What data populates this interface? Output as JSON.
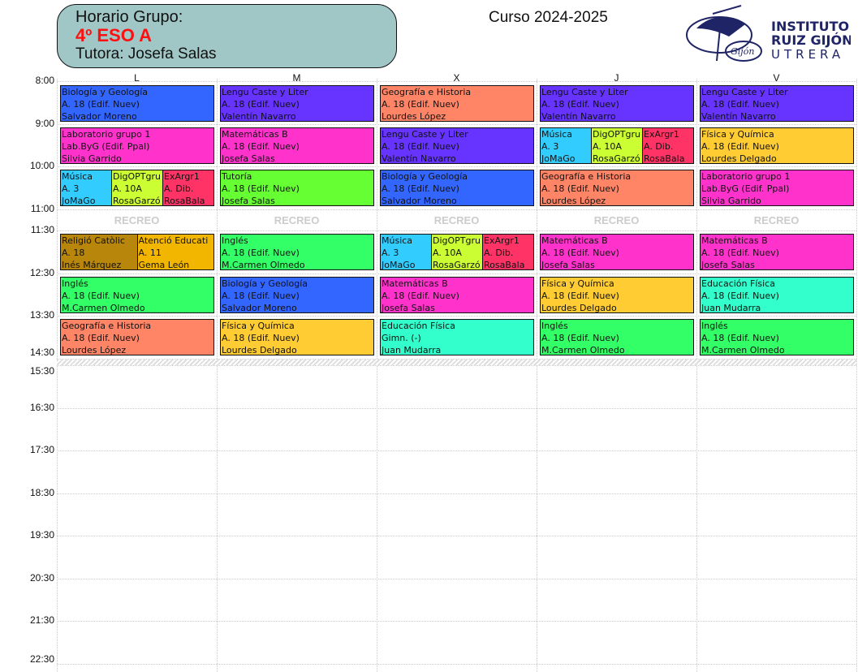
{
  "header": {
    "title": "Horario Grupo:",
    "group": "4º ESO A",
    "tutor": "Tutora: Josefa Salas",
    "course": "Curso 2024-2025"
  },
  "logo": {
    "line1": "INSTITUTO",
    "line2": "RUIZ GIJÓN",
    "line3": "UTRERA",
    "emblem_text": "R.Gijón"
  },
  "days": [
    "L",
    "M",
    "X",
    "J",
    "V"
  ],
  "times": [
    "8:00",
    "9:00",
    "10:00",
    "11:00",
    "11:30",
    "12:30",
    "13:30",
    "14:30",
    "15:30",
    "16:30",
    "17:30",
    "18:30",
    "19:30",
    "20:30",
    "21:30",
    "22:30"
  ],
  "break_label": "RECREO",
  "colors": {
    "blue": "#3366ff",
    "purple": "#6633ff",
    "salmon": "#ff8566",
    "pink": "#ff33cc",
    "lime": "#66ff33",
    "green": "#33ff66",
    "yellow": "#ffcc33",
    "cyan": "#33ccff",
    "yellowgreen": "#ccff33",
    "red": "#ff3366",
    "teal": "#33ffcc",
    "brown": "#b8860b",
    "orange": "#f2b600"
  },
  "schedule": [
    [
      [
        {
          "s": "Biología y Geología",
          "r": "A. 18 (Edif. Nuev)",
          "t": "Salvador Moreno",
          "c": "blue"
        }
      ],
      [
        {
          "s": "Laboratorio grupo 1",
          "r": "Lab.ByG (Edif. Ppal)",
          "t": "Silvia Garrido",
          "c": "pink"
        }
      ],
      [
        {
          "s": "Música",
          "r": "A. 3",
          "t": "JoMaGo",
          "c": "cyan"
        },
        {
          "s": "DigOPTgru",
          "r": "A. 10A",
          "t": "RosaGarzó",
          "c": "yellowgreen"
        },
        {
          "s": "ExArgr1",
          "r": "A. Dib.",
          "t": "RosaBala",
          "c": "red"
        }
      ],
      [
        {
          "s": "Religió Catòlic",
          "r": "A. 18",
          "t": "Inés Márquez",
          "c": "brown"
        },
        {
          "s": "Atenció Educati",
          "r": "A. 11",
          "t": "Gema León",
          "c": "orange"
        }
      ],
      [
        {
          "s": "Inglés",
          "r": "A. 18 (Edif. Nuev)",
          "t": "M.Carmen Olmedo",
          "c": "green"
        }
      ],
      [
        {
          "s": "Geografía e Historia",
          "r": "A. 18 (Edif. Nuev)",
          "t": "Lourdes López",
          "c": "salmon"
        }
      ]
    ],
    [
      [
        {
          "s": "Lengu Caste y Liter",
          "r": "A. 18 (Edif. Nuev)",
          "t": "Valentín Navarro",
          "c": "purple"
        }
      ],
      [
        {
          "s": "Matemáticas B",
          "r": "A. 18 (Edif. Nuev)",
          "t": "Josefa Salas",
          "c": "pink"
        }
      ],
      [
        {
          "s": "Tutoría",
          "r": "A. 18 (Edif. Nuev)",
          "t": "Josefa Salas",
          "c": "lime"
        }
      ],
      [
        {
          "s": "Inglés",
          "r": "A. 18 (Edif. Nuev)",
          "t": "M.Carmen Olmedo",
          "c": "green"
        }
      ],
      [
        {
          "s": "Biología y Geología",
          "r": "A. 18 (Edif. Nuev)",
          "t": "Salvador Moreno",
          "c": "blue"
        }
      ],
      [
        {
          "s": "Física y Química",
          "r": "A. 18 (Edif. Nuev)",
          "t": "Lourdes Delgado",
          "c": "yellow"
        }
      ]
    ],
    [
      [
        {
          "s": "Geografía e Historia",
          "r": "A. 18 (Edif. Nuev)",
          "t": "Lourdes López",
          "c": "salmon"
        }
      ],
      [
        {
          "s": "Lengu Caste y Liter",
          "r": "A. 18 (Edif. Nuev)",
          "t": "Valentín Navarro",
          "c": "purple"
        }
      ],
      [
        {
          "s": "Biología y Geología",
          "r": "A. 18 (Edif. Nuev)",
          "t": "Salvador Moreno",
          "c": "blue"
        }
      ],
      [
        {
          "s": "Música",
          "r": "A. 3",
          "t": "JoMaGo",
          "c": "cyan"
        },
        {
          "s": "DigOPTgru",
          "r": "A. 10A",
          "t": "RosaGarzó",
          "c": "yellowgreen"
        },
        {
          "s": "ExArgr1",
          "r": "A. Dib.",
          "t": "RosaBala",
          "c": "red"
        }
      ],
      [
        {
          "s": "Matemáticas B",
          "r": "A. 18 (Edif. Nuev)",
          "t": "Josefa Salas",
          "c": "pink"
        }
      ],
      [
        {
          "s": "Educación Física",
          "r": "Gimn. (-)",
          "t": "Juan Mudarra",
          "c": "teal"
        }
      ]
    ],
    [
      [
        {
          "s": "Lengu Caste y Liter",
          "r": "A. 18 (Edif. Nuev)",
          "t": "Valentín Navarro",
          "c": "purple"
        }
      ],
      [
        {
          "s": "Música",
          "r": "A. 3",
          "t": "JoMaGo",
          "c": "cyan"
        },
        {
          "s": "DigOPTgru",
          "r": "A. 10A",
          "t": "RosaGarzó",
          "c": "yellowgreen"
        },
        {
          "s": "ExArgr1",
          "r": "A. Dib.",
          "t": "RosaBala",
          "c": "red"
        }
      ],
      [
        {
          "s": "Geografía e Historia",
          "r": "A. 18 (Edif. Nuev)",
          "t": "Lourdes López",
          "c": "salmon"
        }
      ],
      [
        {
          "s": "Matemáticas B",
          "r": "A. 18 (Edif. Nuev)",
          "t": "Josefa Salas",
          "c": "pink"
        }
      ],
      [
        {
          "s": "Física y Química",
          "r": "A. 18 (Edif. Nuev)",
          "t": "Lourdes Delgado",
          "c": "yellow"
        }
      ],
      [
        {
          "s": "Inglés",
          "r": "A. 18 (Edif. Nuev)",
          "t": "M.Carmen Olmedo",
          "c": "green"
        }
      ]
    ],
    [
      [
        {
          "s": "Lengu Caste y Liter",
          "r": "A. 18 (Edif. Nuev)",
          "t": "Valentín Navarro",
          "c": "purple"
        }
      ],
      [
        {
          "s": "Física y Química",
          "r": "A. 18 (Edif. Nuev)",
          "t": "Lourdes Delgado",
          "c": "yellow"
        }
      ],
      [
        {
          "s": "Laboratorio grupo 1",
          "r": "Lab.ByG (Edif. Ppal)",
          "t": "Silvia Garrido",
          "c": "pink"
        }
      ],
      [
        {
          "s": "Matemáticas B",
          "r": "A. 18 (Edif. Nuev)",
          "t": "Josefa Salas",
          "c": "pink"
        }
      ],
      [
        {
          "s": "Educación Física",
          "r": "A. 18 (Edif. Nuev)",
          "t": "Juan Mudarra",
          "c": "teal"
        }
      ],
      [
        {
          "s": "Inglés",
          "r": "A. 18 (Edif. Nuev)",
          "t": "M.Carmen Olmedo",
          "c": "green"
        }
      ]
    ]
  ]
}
